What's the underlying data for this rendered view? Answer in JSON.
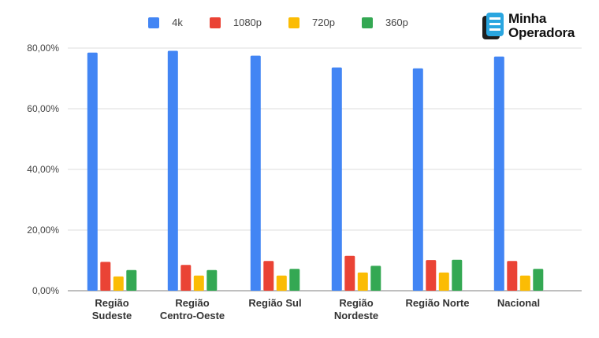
{
  "brand": {
    "line1": "Minha",
    "line2": "Operadora"
  },
  "chart_data": {
    "type": "bar",
    "categories": [
      [
        "Região",
        "Sudeste"
      ],
      [
        "Região",
        "Centro-Oeste"
      ],
      [
        "Região Sul"
      ],
      [
        "Região",
        "Nordeste"
      ],
      [
        "Região Norte"
      ],
      [
        "Nacional"
      ]
    ],
    "series": [
      {
        "name": "4k",
        "color": "#4285F4",
        "values": [
          78.5,
          79.1,
          77.5,
          73.6,
          73.3,
          77.2
        ]
      },
      {
        "name": "1080p",
        "color": "#EA4335",
        "values": [
          9.5,
          8.5,
          9.8,
          11.5,
          10.1,
          9.8
        ]
      },
      {
        "name": "720p",
        "color": "#FBBC04",
        "values": [
          4.7,
          5.0,
          5.0,
          6.0,
          6.0,
          5.0
        ]
      },
      {
        "name": "360p",
        "color": "#34A853",
        "values": [
          6.8,
          6.8,
          7.2,
          8.2,
          10.2,
          7.2
        ]
      }
    ],
    "yticks": [
      "0,00%",
      "20,00%",
      "40,00%",
      "60,00%",
      "80,00%"
    ],
    "ylim": [
      0,
      80
    ],
    "grid": true,
    "legend_position": "top",
    "title": "",
    "xlabel": "",
    "ylabel": ""
  }
}
